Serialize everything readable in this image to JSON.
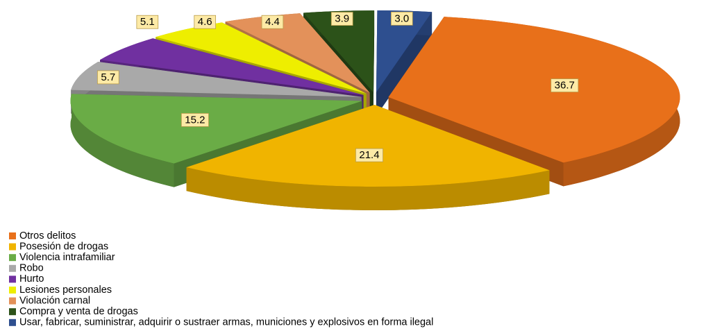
{
  "chart_data": {
    "type": "pie",
    "categories": [
      "Otros delitos",
      "Posesión de drogas",
      "Violencia intrafamiliar",
      "Robo",
      "Hurto",
      "Lesiones personales",
      "Violación carnal",
      "Compra y venta de drogas",
      "Usar, fabricar, suministrar, adquirir o sustraer armas, municiones y explosivos en forma ilegal"
    ],
    "values": [
      36.7,
      21.4,
      15.2,
      5.7,
      5.1,
      4.6,
      4.4,
      3.9,
      3.0
    ],
    "value_labels": [
      "36.7",
      "21.4",
      "15.2",
      "5.7",
      "5.1",
      "4.6",
      "4.4",
      "3.9",
      "3.0"
    ],
    "colors": [
      "#e8701a",
      "#f0b400",
      "#6aac46",
      "#a9a9a9",
      "#7030a0",
      "#eeee00",
      "#e3915a",
      "#2c5219",
      "#2e4f8f"
    ],
    "legend": "bottom-left"
  }
}
